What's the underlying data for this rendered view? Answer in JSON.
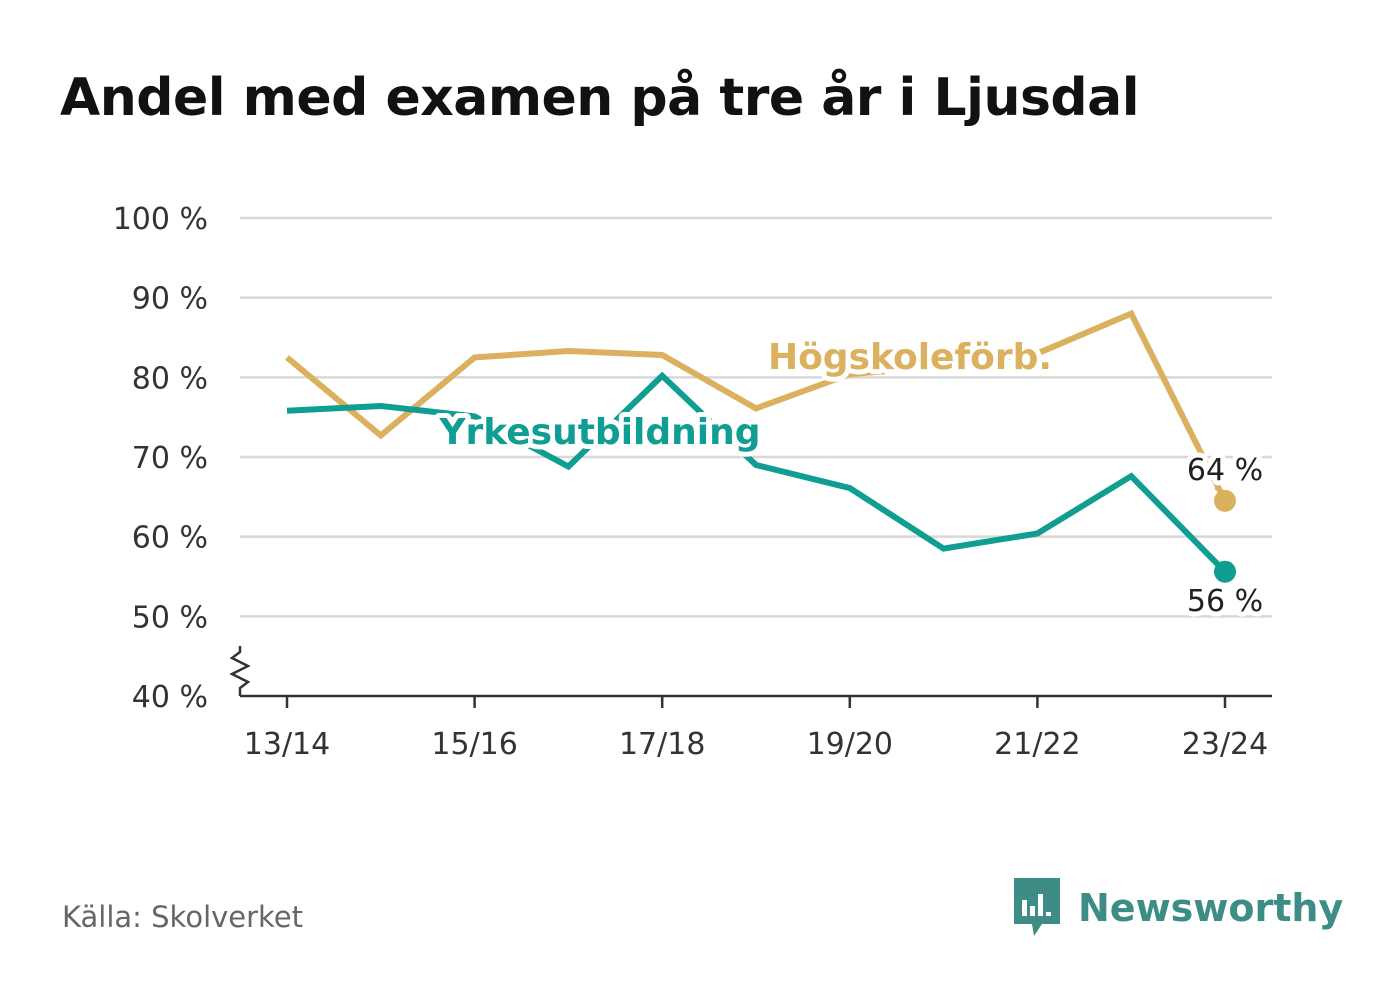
{
  "header": {
    "title": "Andel med examen på tre år i Ljusdal"
  },
  "footer": {
    "source": "Källa: Skolverket",
    "brand": "Newsworthy"
  },
  "colors": {
    "hogskole": "#dbb05e",
    "yrkes": "#0f9e91",
    "grid": "#d8d8d8",
    "axis": "#333333",
    "text": "#333333",
    "brand": "#3d8c85"
  },
  "chart_data": {
    "type": "line",
    "x": [
      "13/14",
      "14/15",
      "15/16",
      "16/17",
      "17/18",
      "18/19",
      "19/20",
      "20/21",
      "21/22",
      "22/23",
      "23/24"
    ],
    "x_tick_labels": [
      "13/14",
      "15/16",
      "17/18",
      "19/20",
      "21/22",
      "23/24"
    ],
    "y_ticks": [
      40,
      50,
      60,
      70,
      80,
      90,
      100
    ],
    "y_tick_labels": [
      "40 %",
      "50 %",
      "60 %",
      "70 %",
      "80 %",
      "90 %",
      "100 %"
    ],
    "ylim": [
      40,
      100
    ],
    "y_axis_break": true,
    "grid": true,
    "series": [
      {
        "name": "Högskoleförb.",
        "values": [
          82.5,
          72.7,
          82.5,
          83.3,
          82.8,
          76.1,
          80.4,
          81.4,
          83.0,
          88.0,
          64.5
        ],
        "end_label": "64 %"
      },
      {
        "name": "Yrkesutbildning",
        "values": [
          75.8,
          76.4,
          75.1,
          68.8,
          80.2,
          69.0,
          66.1,
          58.5,
          60.4,
          67.6,
          55.6
        ],
        "end_label": "56 %"
      }
    ],
    "xlabel": "",
    "ylabel": ""
  }
}
